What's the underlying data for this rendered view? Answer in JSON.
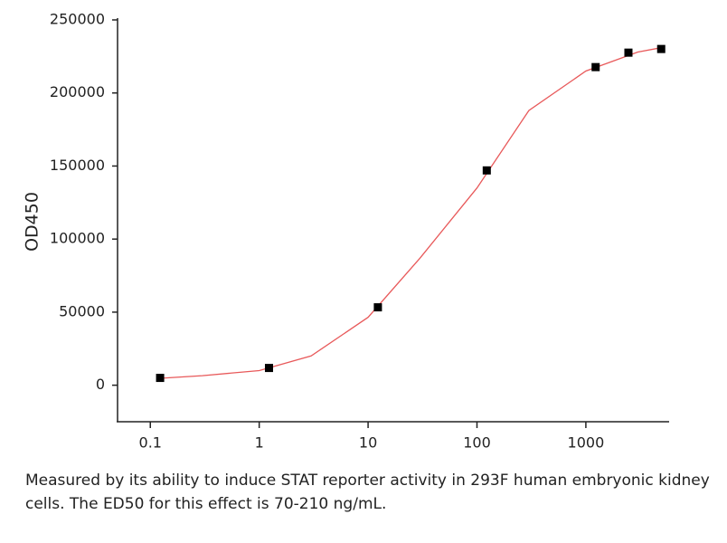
{
  "chart_data": {
    "type": "scatter",
    "y_label": "OD450",
    "x_scale": "log",
    "x": [
      0.123,
      1.23,
      12.3,
      123,
      1230,
      2460,
      4920
    ],
    "values": [
      5000,
      11800,
      53300,
      147000,
      217700,
      227600,
      230100
    ],
    "color": "#000000",
    "fit": {
      "x": [
        0.123,
        0.3,
        1,
        3,
        10,
        30,
        100,
        300,
        1000,
        3000,
        4920
      ],
      "values": [
        4700,
        6500,
        10000,
        20000,
        46500,
        87000,
        135000,
        188000,
        215000,
        228000,
        231000
      ],
      "color": "#e8595a"
    },
    "xlim": [
      0.05,
      5600
    ],
    "ylim": [
      -25000,
      250000
    ],
    "xticks": [
      0.1,
      1,
      10,
      100,
      1000
    ],
    "yticks": [
      0,
      50000,
      100000,
      150000,
      200000,
      250000
    ]
  },
  "caption": "Measured by its ability to induce STAT reporter activity in 293F human embryonic kidney cells. The ED50 for this effect is 70-210 ng/mL."
}
